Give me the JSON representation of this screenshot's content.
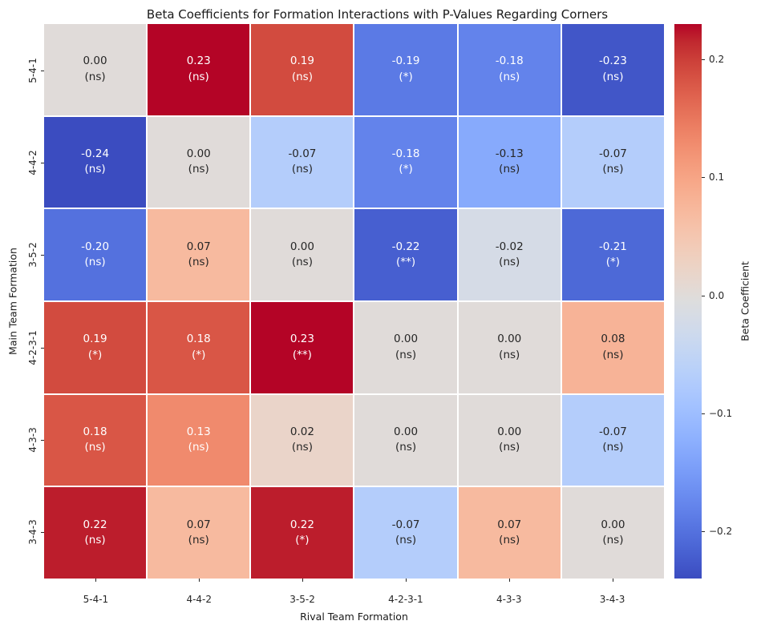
{
  "chart_data": {
    "type": "heatmap",
    "title": "Beta Coefficients for Formation Interactions with P-Values Regarding Corners",
    "xlabel": "Rival Team Formation",
    "ylabel": "Main Team Formation",
    "x_categories": [
      "5-4-1",
      "4-4-2",
      "3-5-2",
      "4-2-3-1",
      "4-3-3",
      "3-4-3"
    ],
    "y_categories": [
      "5-4-1",
      "4-4-2",
      "3-5-2",
      "4-2-3-1",
      "4-3-3",
      "3-4-3"
    ],
    "values": [
      [
        0.0,
        0.23,
        0.19,
        -0.19,
        -0.18,
        -0.23
      ],
      [
        -0.24,
        0.0,
        -0.07,
        -0.18,
        -0.13,
        -0.07
      ],
      [
        -0.2,
        0.07,
        0.0,
        -0.22,
        -0.02,
        -0.21
      ],
      [
        0.19,
        0.18,
        0.23,
        0.0,
        0.0,
        0.08
      ],
      [
        0.18,
        0.13,
        0.02,
        0.0,
        0.0,
        -0.07
      ],
      [
        0.22,
        0.07,
        0.22,
        -0.07,
        0.07,
        0.0
      ]
    ],
    "significance": [
      [
        "ns",
        "ns",
        "ns",
        "*",
        "ns",
        "ns"
      ],
      [
        "ns",
        "ns",
        "ns",
        "*",
        "ns",
        "ns"
      ],
      [
        "ns",
        "ns",
        "ns",
        "**",
        "ns",
        "*"
      ],
      [
        "*",
        "*",
        "**",
        "ns",
        "ns",
        "ns"
      ],
      [
        "ns",
        "ns",
        "ns",
        "ns",
        "ns",
        "ns"
      ],
      [
        "ns",
        "ns",
        "*",
        "ns",
        "ns",
        "ns"
      ]
    ],
    "colormap": "coolwarm",
    "vmin": -0.24,
    "vmax": 0.23,
    "grid_on": false,
    "cell_border_color": "#ffffff",
    "annotation_colors": {
      "dark": "#262626",
      "light": "#ffffff"
    },
    "colorbar": {
      "label": "Beta Coefficient",
      "tick_labels": [
        "0.2",
        "0.1",
        "0.0",
        "−0.1",
        "−0.2"
      ],
      "tick_values": [
        0.2,
        0.1,
        0.0,
        -0.1,
        -0.2
      ],
      "position": "right",
      "top_color": "#b40426",
      "bottom_color": "#3b4cc0"
    }
  }
}
